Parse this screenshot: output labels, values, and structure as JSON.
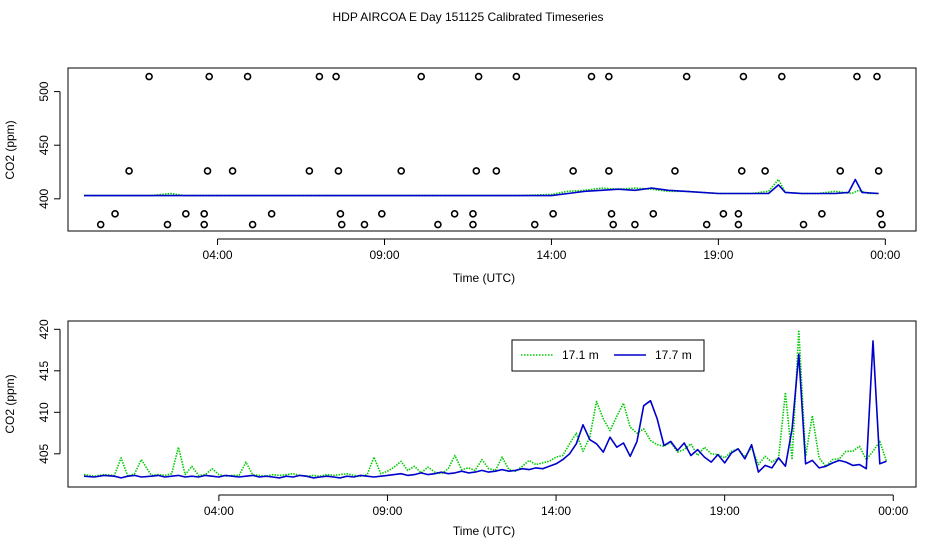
{
  "title": "HDP AIRCOA E  Day 151125  Calibrated Timeseries",
  "chart_data": [
    {
      "type": "scatter+line",
      "xlabel": "Time (UTC)",
      "ylabel": "CO2 (ppm)",
      "x_unit": "hours since 00:00 UTC",
      "xlim": [
        0,
        24.2
      ],
      "ylim": [
        370,
        522
      ],
      "xticks": [
        {
          "value": 4,
          "label": "04:00"
        },
        {
          "value": 9,
          "label": "09:00"
        },
        {
          "value": 14,
          "label": "14:00"
        },
        {
          "value": 19,
          "label": "19:00"
        },
        {
          "value": 24,
          "label": "00:00"
        }
      ],
      "yticks": [
        400,
        450,
        500
      ],
      "calibration_points": {
        "marker": "open-circle",
        "points": [
          [
            0.5,
            376
          ],
          [
            0.93,
            386
          ],
          [
            1.35,
            426
          ],
          [
            1.95,
            514
          ],
          [
            2.5,
            376
          ],
          [
            3.05,
            386
          ],
          [
            3.6,
            376
          ],
          [
            3.6,
            386
          ],
          [
            3.7,
            426
          ],
          [
            3.75,
            514
          ],
          [
            4.45,
            426
          ],
          [
            4.9,
            514
          ],
          [
            5.05,
            376
          ],
          [
            5.62,
            386
          ],
          [
            6.75,
            426
          ],
          [
            7.05,
            514
          ],
          [
            7.55,
            514
          ],
          [
            7.62,
            426
          ],
          [
            7.68,
            386
          ],
          [
            7.72,
            376
          ],
          [
            8.4,
            376
          ],
          [
            8.92,
            386
          ],
          [
            9.5,
            426
          ],
          [
            10.1,
            514
          ],
          [
            10.6,
            376
          ],
          [
            11.1,
            386
          ],
          [
            11.65,
            376
          ],
          [
            11.65,
            386
          ],
          [
            11.75,
            426
          ],
          [
            11.82,
            514
          ],
          [
            12.35,
            426
          ],
          [
            12.95,
            514
          ],
          [
            13.5,
            376
          ],
          [
            14.05,
            386
          ],
          [
            14.65,
            426
          ],
          [
            15.2,
            514
          ],
          [
            15.72,
            514
          ],
          [
            15.72,
            426
          ],
          [
            15.8,
            386
          ],
          [
            15.85,
            376
          ],
          [
            16.5,
            376
          ],
          [
            17.05,
            386
          ],
          [
            17.7,
            426
          ],
          [
            18.05,
            514
          ],
          [
            18.65,
            376
          ],
          [
            19.15,
            386
          ],
          [
            19.6,
            376
          ],
          [
            19.6,
            386
          ],
          [
            19.7,
            426
          ],
          [
            19.75,
            514
          ],
          [
            20.4,
            426
          ],
          [
            20.9,
            514
          ],
          [
            21.55,
            376
          ],
          [
            22.1,
            386
          ],
          [
            22.65,
            426
          ],
          [
            23.15,
            514
          ],
          [
            23.75,
            514
          ],
          [
            23.8,
            426
          ],
          [
            23.85,
            386
          ],
          [
            23.9,
            376
          ]
        ]
      },
      "series": [
        {
          "name": "17.1 m",
          "color": "#00cc00",
          "style": "dotted",
          "x": [
            0,
            1,
            2,
            2.6,
            3,
            4,
            5,
            6,
            7,
            8,
            9,
            10,
            11,
            12,
            13,
            14,
            14.5,
            15,
            15.5,
            16,
            16.5,
            17,
            17.5,
            18,
            19,
            19.5,
            20,
            20.5,
            20.8,
            21,
            21.5,
            22,
            22.5,
            23,
            23.2,
            23.5,
            23.8
          ],
          "y": [
            403,
            403,
            403,
            405,
            403,
            403,
            403,
            403,
            403,
            403,
            403,
            403,
            403,
            403,
            403,
            404,
            407,
            408,
            410,
            409,
            410,
            409,
            407,
            407,
            405,
            405,
            405,
            407,
            418,
            406,
            405,
            405,
            407,
            405,
            408,
            405,
            405
          ]
        },
        {
          "name": "17.7 m",
          "color": "#0000cc",
          "style": "solid",
          "x": [
            0,
            1,
            2,
            3,
            4,
            5,
            6,
            7,
            8,
            9,
            10,
            11,
            12,
            13,
            14,
            14.5,
            15,
            15.5,
            16,
            16.5,
            17,
            17.5,
            18,
            19,
            19.5,
            20,
            20.5,
            20.8,
            21,
            21.5,
            22,
            22.5,
            22.9,
            23.1,
            23.3,
            23.8
          ],
          "y": [
            403,
            403,
            403,
            403,
            403,
            403,
            403,
            403,
            403,
            403,
            403,
            403,
            403,
            403,
            403,
            405,
            407,
            408,
            409,
            408,
            410,
            408,
            407,
            405,
            405,
            405,
            405,
            413,
            406,
            405,
            405,
            405,
            406,
            418,
            406,
            405
          ]
        }
      ]
    },
    {
      "type": "line",
      "xlabel": "Time (UTC)",
      "ylabel": "CO2 (ppm)",
      "x_unit": "hours since 00:00 UTC",
      "xlim": [
        0,
        24.2
      ],
      "ylim": [
        401,
        421
      ],
      "xticks": [
        {
          "value": 4,
          "label": "04:00"
        },
        {
          "value": 9,
          "label": "09:00"
        },
        {
          "value": 14,
          "label": "14:00"
        },
        {
          "value": 19,
          "label": "19:00"
        },
        {
          "value": 24,
          "label": "00:00"
        }
      ],
      "yticks": [
        405,
        410,
        415,
        420
      ],
      "legend": {
        "position": "top-center",
        "entries": [
          {
            "label": "17.1 m",
            "color": "#00cc00",
            "style": "dotted"
          },
          {
            "label": "17.7 m",
            "color": "#0000cc",
            "style": "solid"
          }
        ]
      },
      "series": [
        {
          "name": "17.1 m",
          "color": "#00cc00",
          "style": "dotted",
          "x": [
            0,
            0.3,
            0.6,
            0.9,
            1.1,
            1.3,
            1.5,
            1.7,
            2.0,
            2.2,
            2.4,
            2.6,
            2.8,
            3.0,
            3.2,
            3.4,
            3.6,
            3.8,
            4.0,
            4.2,
            4.4,
            4.6,
            4.8,
            5.0,
            5.2,
            5.4,
            5.6,
            5.8,
            6.0,
            6.2,
            6.4,
            6.6,
            6.8,
            7.0,
            7.2,
            7.4,
            7.6,
            7.8,
            8.0,
            8.2,
            8.4,
            8.6,
            8.8,
            9.0,
            9.2,
            9.4,
            9.6,
            9.8,
            10.0,
            10.2,
            10.4,
            10.6,
            10.8,
            11.0,
            11.2,
            11.4,
            11.6,
            11.8,
            12.0,
            12.2,
            12.4,
            12.6,
            12.8,
            13.0,
            13.2,
            13.4,
            13.6,
            13.8,
            14.0,
            14.2,
            14.4,
            14.6,
            14.8,
            15.0,
            15.2,
            15.4,
            15.6,
            15.8,
            16.0,
            16.2,
            16.4,
            16.6,
            16.8,
            17.0,
            17.2,
            17.4,
            17.6,
            17.8,
            18.0,
            18.2,
            18.4,
            18.6,
            18.8,
            19.0,
            19.2,
            19.4,
            19.6,
            19.8,
            20.0,
            20.2,
            20.4,
            20.6,
            20.8,
            21.0,
            21.2,
            21.4,
            21.6,
            21.8,
            22.0,
            22.2,
            22.4,
            22.6,
            22.8,
            23.0,
            23.2,
            23.4,
            23.6,
            23.8
          ],
          "y": [
            402.5,
            402.3,
            402.5,
            402.4,
            404.5,
            402.3,
            402.6,
            404.3,
            402.4,
            402.5,
            402.4,
            402.6,
            405.8,
            402.5,
            403.5,
            402.4,
            402.5,
            403.2,
            402.5,
            402.3,
            402.4,
            402.4,
            404.0,
            402.5,
            402.4,
            402.3,
            402.5,
            402.4,
            402.5,
            402.6,
            402.4,
            402.3,
            402.4,
            402.3,
            402.5,
            402.4,
            402.5,
            402.6,
            402.4,
            402.3,
            402.5,
            404.6,
            402.6,
            402.9,
            403.4,
            404.1,
            403.0,
            403.5,
            402.7,
            403.4,
            402.8,
            402.6,
            403.2,
            404.8,
            403.1,
            403.3,
            403.0,
            404.3,
            403.2,
            403.0,
            404.6,
            403.1,
            402.9,
            403.5,
            404.2,
            403.7,
            403.9,
            404.1,
            404.6,
            404.8,
            406.2,
            407.5,
            405.3,
            407.0,
            411.3,
            409.2,
            407.8,
            409.5,
            411.1,
            408.2,
            407.5,
            408.0,
            406.6,
            406.1,
            405.9,
            406.4,
            405.2,
            405.5,
            406.2,
            404.8,
            405.8,
            405.0,
            404.9,
            404.5,
            405.3,
            405.6,
            404.6,
            405.8,
            403.7,
            404.7,
            404.0,
            404.5,
            412.4,
            404.3,
            419.9,
            404.7,
            409.6,
            404.5,
            403.5,
            404.3,
            404.4,
            405.3,
            405.3,
            405.9,
            404.3,
            405.3,
            406.5,
            404.1
          ]
        },
        {
          "name": "17.7 m",
          "color": "#0000cc",
          "style": "solid",
          "x": [
            0,
            0.3,
            0.6,
            0.9,
            1.1,
            1.3,
            1.5,
            1.7,
            2.0,
            2.2,
            2.4,
            2.6,
            2.8,
            3.0,
            3.2,
            3.4,
            3.6,
            3.8,
            4.0,
            4.2,
            4.4,
            4.6,
            4.8,
            5.0,
            5.2,
            5.4,
            5.6,
            5.8,
            6.0,
            6.2,
            6.4,
            6.6,
            6.8,
            7.0,
            7.2,
            7.4,
            7.6,
            7.8,
            8.0,
            8.2,
            8.4,
            8.6,
            8.8,
            9.0,
            9.2,
            9.4,
            9.6,
            9.8,
            10.0,
            10.2,
            10.4,
            10.6,
            10.8,
            11.0,
            11.2,
            11.4,
            11.6,
            11.8,
            12.0,
            12.2,
            12.4,
            12.6,
            12.8,
            13.0,
            13.2,
            13.4,
            13.6,
            13.8,
            14.0,
            14.2,
            14.4,
            14.6,
            14.8,
            15.0,
            15.2,
            15.4,
            15.6,
            15.8,
            16.0,
            16.2,
            16.4,
            16.6,
            16.8,
            17.0,
            17.2,
            17.4,
            17.6,
            17.8,
            18.0,
            18.2,
            18.4,
            18.6,
            18.8,
            19.0,
            19.2,
            19.4,
            19.6,
            19.8,
            20.0,
            20.2,
            20.4,
            20.6,
            20.8,
            21.0,
            21.2,
            21.4,
            21.6,
            21.8,
            22.0,
            22.2,
            22.4,
            22.6,
            22.8,
            23.0,
            23.2,
            23.4,
            23.6,
            23.8
          ],
          "y": [
            402.3,
            402.2,
            402.4,
            402.3,
            402.1,
            402.3,
            402.4,
            402.2,
            402.3,
            402.4,
            402.2,
            402.3,
            402.4,
            402.2,
            402.3,
            402.2,
            402.4,
            402.3,
            402.2,
            402.4,
            402.3,
            402.2,
            402.3,
            402.4,
            402.2,
            402.3,
            402.2,
            402.1,
            402.3,
            402.2,
            402.4,
            402.3,
            402.1,
            402.2,
            402.3,
            402.2,
            402.1,
            402.3,
            402.2,
            402.4,
            402.3,
            402.2,
            402.3,
            402.4,
            402.5,
            402.6,
            402.4,
            402.5,
            402.7,
            402.5,
            402.6,
            402.8,
            402.6,
            402.7,
            402.9,
            402.7,
            402.8,
            403.0,
            402.8,
            402.9,
            403.1,
            402.9,
            403.0,
            403.2,
            403.1,
            403.3,
            403.2,
            403.5,
            403.8,
            404.3,
            405.0,
            406.2,
            408.5,
            406.7,
            406.2,
            405.2,
            407.0,
            405.8,
            406.3,
            404.7,
            406.5,
            410.8,
            411.4,
            409.2,
            406.0,
            406.5,
            405.4,
            406.3,
            404.8,
            405.5,
            404.6,
            404.0,
            404.9,
            403.9,
            405.1,
            405.6,
            404.4,
            406.1,
            402.8,
            403.6,
            403.3,
            404.5,
            403.5,
            408.0,
            417.0,
            403.8,
            404.2,
            403.3,
            403.5,
            403.9,
            404.2,
            404.0,
            403.6,
            403.7,
            403.2,
            418.6,
            403.8,
            404.1
          ]
        }
      ]
    }
  ]
}
